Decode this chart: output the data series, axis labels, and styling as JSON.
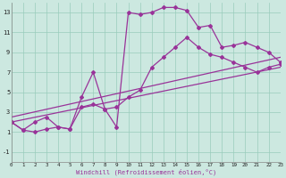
{
  "bg_color": "#cce8e0",
  "line_color": "#993399",
  "xlabel": "Windchill (Refroidissement éolien,°C)",
  "xlim": [
    0,
    23
  ],
  "ylim": [
    -2,
    14
  ],
  "xticks": [
    0,
    1,
    2,
    3,
    4,
    5,
    6,
    7,
    8,
    9,
    10,
    11,
    12,
    13,
    14,
    15,
    16,
    17,
    18,
    19,
    20,
    21,
    22,
    23
  ],
  "yticks": [
    -1,
    1,
    3,
    5,
    7,
    9,
    11,
    13
  ],
  "grid_color": "#99ccbb",
  "line1_x": [
    0,
    1,
    2,
    3,
    4,
    5,
    6,
    7,
    8,
    9,
    10,
    11,
    12,
    13,
    14,
    15,
    16,
    17,
    18,
    19,
    20,
    21,
    22,
    23
  ],
  "line1_y": [
    2,
    1.2,
    1,
    1.3,
    1.5,
    1.3,
    4.5,
    7,
    3.3,
    1.5,
    13,
    12.8,
    13,
    13.5,
    13.5,
    13.2,
    11.5,
    11.7,
    9.5,
    9.7,
    10,
    9.5,
    9,
    8
  ],
  "line2_x": [
    0,
    1,
    2,
    3,
    4,
    5,
    6,
    7,
    8,
    9,
    10,
    11,
    12,
    13,
    14,
    15,
    16,
    17,
    18,
    19,
    20,
    21,
    22,
    23
  ],
  "line2_y": [
    2,
    1.2,
    2,
    2.5,
    1.5,
    1.3,
    3.5,
    3.8,
    3.3,
    3.5,
    4.5,
    5.2,
    7.5,
    8.5,
    9.5,
    10.5,
    9.5,
    8.8,
    8.5,
    8.0,
    7.5,
    7.0,
    7.5,
    7.8
  ],
  "line3_x": [
    0,
    23
  ],
  "line3_y": [
    2,
    7.5
  ],
  "line4_x": [
    0,
    23
  ],
  "line4_y": [
    2.5,
    8.5
  ]
}
